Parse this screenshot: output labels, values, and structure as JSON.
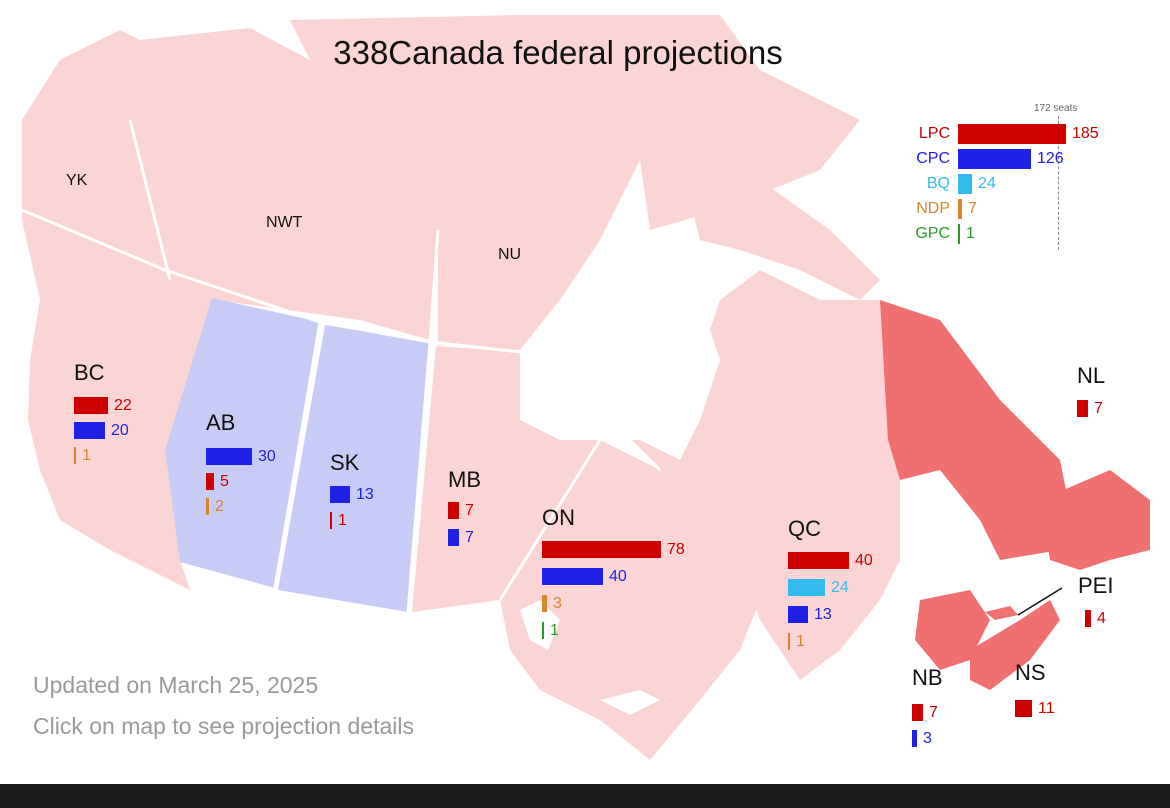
{
  "title": "338Canada federal projections",
  "colors": {
    "LPC": "#cc0000",
    "CPC": "#1f22e6",
    "BQ": "#33bbee",
    "NDP": "#d9862b",
    "GPC": "#2a9a2a",
    "region_lpc": "#fbd5d5",
    "region_cpc": "#c9cbf7",
    "region_lpc_strong": "#f07070"
  },
  "national": {
    "majority_label": "172 seats",
    "majority_seats": 172,
    "parties": [
      {
        "party": "LPC",
        "seats": 185
      },
      {
        "party": "CPC",
        "seats": 126
      },
      {
        "party": "BQ",
        "seats": 24
      },
      {
        "party": "NDP",
        "seats": 7
      },
      {
        "party": "GPC",
        "seats": 1
      }
    ]
  },
  "territories": [
    "YK",
    "NWT",
    "NU"
  ],
  "provinces": [
    {
      "name": "BC",
      "results": [
        {
          "party": "LPC",
          "seats": 22
        },
        {
          "party": "CPC",
          "seats": 20
        },
        {
          "party": "NDP",
          "seats": 1
        }
      ]
    },
    {
      "name": "AB",
      "results": [
        {
          "party": "CPC",
          "seats": 30
        },
        {
          "party": "LPC",
          "seats": 5
        },
        {
          "party": "NDP",
          "seats": 2
        }
      ]
    },
    {
      "name": "SK",
      "results": [
        {
          "party": "CPC",
          "seats": 13
        },
        {
          "party": "LPC",
          "seats": 1
        }
      ]
    },
    {
      "name": "MB",
      "results": [
        {
          "party": "LPC",
          "seats": 7
        },
        {
          "party": "CPC",
          "seats": 7
        }
      ]
    },
    {
      "name": "ON",
      "results": [
        {
          "party": "LPC",
          "seats": 78
        },
        {
          "party": "CPC",
          "seats": 40
        },
        {
          "party": "NDP",
          "seats": 3
        },
        {
          "party": "GPC",
          "seats": 1
        }
      ]
    },
    {
      "name": "QC",
      "results": [
        {
          "party": "LPC",
          "seats": 40
        },
        {
          "party": "BQ",
          "seats": 24
        },
        {
          "party": "CPC",
          "seats": 13
        },
        {
          "party": "NDP",
          "seats": 1
        }
      ]
    },
    {
      "name": "NL",
      "results": [
        {
          "party": "LPC",
          "seats": 7
        }
      ]
    },
    {
      "name": "PEI",
      "results": [
        {
          "party": "LPC",
          "seats": 4
        }
      ]
    },
    {
      "name": "NB",
      "results": [
        {
          "party": "LPC",
          "seats": 7
        },
        {
          "party": "CPC",
          "seats": 3
        }
      ]
    },
    {
      "name": "NS",
      "results": [
        {
          "party": "LPC",
          "seats": 11
        }
      ]
    }
  ],
  "footer": {
    "updated": "Updated on March 25, 2025",
    "hint": "Click on map to see projection details"
  }
}
